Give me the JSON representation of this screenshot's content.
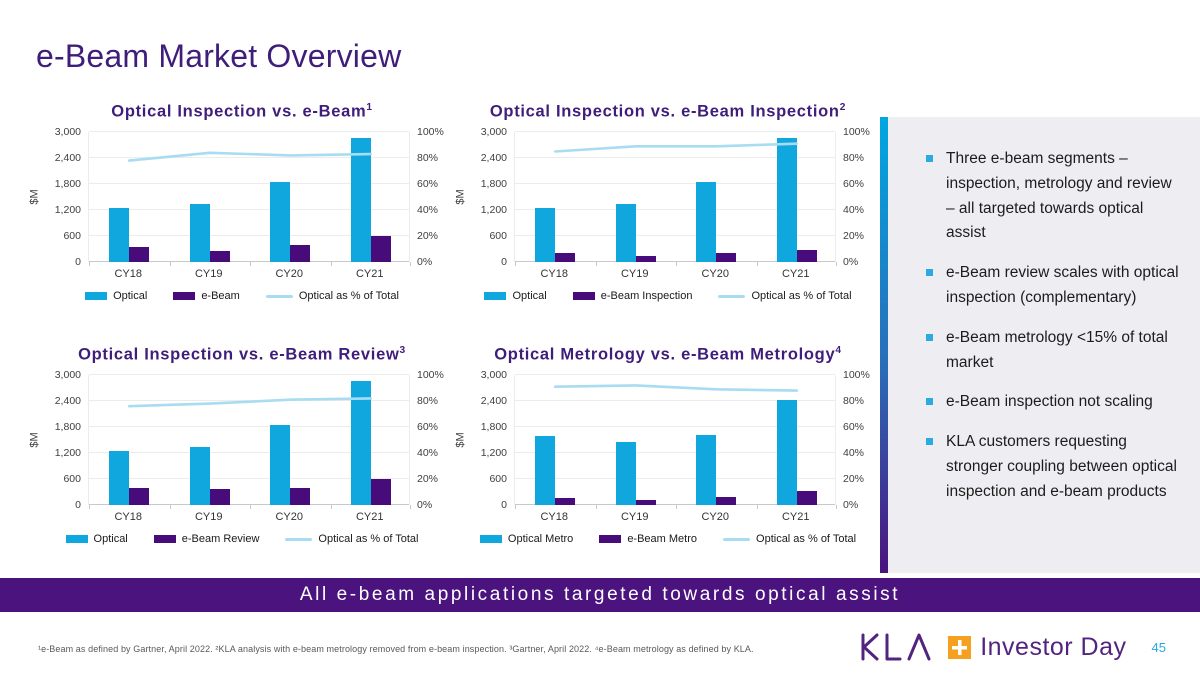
{
  "slide": {
    "title": "e-Beam Market Overview",
    "banner": "All e-beam applications targeted towards optical assist",
    "footnote": "¹e-Beam as defined by Gartner, April 2022. ²KLA analysis with e-beam metrology removed from e-beam inspection. ³Gartner, April 2022. ⁴e-Beam metrology as defined by KLA.",
    "page_number": "45",
    "logo": {
      "brand": "KLA",
      "event": "Investor Day",
      "plus_icon": "+"
    }
  },
  "sidebar": {
    "bullets": [
      "Three e-beam segments – inspection, metrology and review – all targeted towards optical assist",
      "e-Beam review scales with optical inspection (complementary)",
      "e-Beam metrology <15% of total market",
      "e-Beam inspection not scaling",
      "KLA customers requesting stronger coupling between optical inspection and e-beam products"
    ]
  },
  "colors": {
    "optical": "#0FA7DE",
    "ebeam": "#470B7A",
    "line": "#A8DCF2",
    "title_purple": "#3F1D7A",
    "banner_purple": "#4A137E",
    "accent_cyan": "#00A7E1",
    "bullet_cyan": "#29ABE2",
    "logo_purple": "#52247F",
    "logo_orange": "#F5A01E",
    "page_cyan": "#29A8DF",
    "gridline": "#ECECEC",
    "baseline": "#C9C9C9"
  },
  "chart_data": [
    {
      "type": "bar",
      "title": "Optical Inspection vs. e-Beam",
      "title_superscript": "1",
      "categories": [
        "CY18",
        "CY19",
        "CY20",
        "CY21"
      ],
      "series": [
        {
          "name": "Optical",
          "type": "bar",
          "color_key": "optical",
          "axis": "left",
          "values": [
            1250,
            1350,
            1850,
            2870
          ]
        },
        {
          "name": "e-Beam",
          "type": "bar",
          "color_key": "ebeam",
          "axis": "left",
          "values": [
            350,
            250,
            400,
            600
          ]
        },
        {
          "name": "Optical as % of Total",
          "type": "line",
          "color_key": "line",
          "axis": "right",
          "values": [
            78,
            84,
            82,
            83
          ]
        }
      ],
      "left_axis": {
        "label": "$M",
        "min": 0,
        "max": 3000,
        "ticks": [
          "0",
          "600",
          "1,200",
          "1,800",
          "2,400",
          "3,000"
        ]
      },
      "right_axis": {
        "min": 0,
        "max": 100,
        "ticks": [
          "0%",
          "20%",
          "40%",
          "60%",
          "80%",
          "100%"
        ]
      },
      "grid": true,
      "legend_position": "bottom"
    },
    {
      "type": "bar",
      "title": "Optical Inspection vs. e-Beam Inspection",
      "title_superscript": "2",
      "categories": [
        "CY18",
        "CY19",
        "CY20",
        "CY21"
      ],
      "series": [
        {
          "name": "Optical",
          "type": "bar",
          "color_key": "optical",
          "axis": "left",
          "values": [
            1250,
            1350,
            1850,
            2870
          ]
        },
        {
          "name": "e-Beam Inspection",
          "type": "bar",
          "color_key": "ebeam",
          "axis": "left",
          "values": [
            200,
            150,
            200,
            270
          ]
        },
        {
          "name": "Optical as % of Total",
          "type": "line",
          "color_key": "line",
          "axis": "right",
          "values": [
            85,
            89,
            89,
            91
          ]
        }
      ],
      "left_axis": {
        "label": "$M",
        "min": 0,
        "max": 3000,
        "ticks": [
          "0",
          "600",
          "1,200",
          "1,800",
          "2,400",
          "3,000"
        ]
      },
      "right_axis": {
        "min": 0,
        "max": 100,
        "ticks": [
          "0%",
          "20%",
          "40%",
          "60%",
          "80%",
          "100%"
        ]
      },
      "grid": true,
      "legend_position": "bottom"
    },
    {
      "type": "bar",
      "title": "Optical Inspection vs. e-Beam Review",
      "title_superscript": "3",
      "categories": [
        "CY18",
        "CY19",
        "CY20",
        "CY21"
      ],
      "series": [
        {
          "name": "Optical",
          "type": "bar",
          "color_key": "optical",
          "axis": "left",
          "values": [
            1250,
            1350,
            1850,
            2870
          ]
        },
        {
          "name": "e-Beam Review",
          "type": "bar",
          "color_key": "ebeam",
          "axis": "left",
          "values": [
            400,
            370,
            400,
            590
          ]
        },
        {
          "name": "Optical as % of Total",
          "type": "line",
          "color_key": "line",
          "axis": "right",
          "values": [
            76,
            78,
            81,
            82
          ]
        }
      ],
      "left_axis": {
        "label": "$M",
        "min": 0,
        "max": 3000,
        "ticks": [
          "0",
          "600",
          "1,200",
          "1,800",
          "2,400",
          "3,000"
        ]
      },
      "right_axis": {
        "min": 0,
        "max": 100,
        "ticks": [
          "0%",
          "20%",
          "40%",
          "60%",
          "80%",
          "100%"
        ]
      },
      "grid": true,
      "legend_position": "bottom"
    },
    {
      "type": "bar",
      "title": "Optical Metrology vs. e-Beam Metrology",
      "title_superscript": "4",
      "categories": [
        "CY18",
        "CY19",
        "CY20",
        "CY21"
      ],
      "series": [
        {
          "name": "Optical Metro",
          "type": "bar",
          "color_key": "optical",
          "axis": "left",
          "values": [
            1600,
            1450,
            1620,
            2430
          ]
        },
        {
          "name": "e-Beam Metro",
          "type": "bar",
          "color_key": "ebeam",
          "axis": "left",
          "values": [
            160,
            120,
            190,
            330
          ]
        },
        {
          "name": "Optical as % of Total",
          "type": "line",
          "color_key": "line",
          "axis": "right",
          "values": [
            91,
            92,
            89,
            88
          ]
        }
      ],
      "left_axis": {
        "label": "$M",
        "min": 0,
        "max": 3000,
        "ticks": [
          "0",
          "600",
          "1,200",
          "1,800",
          "2,400",
          "3,000"
        ]
      },
      "right_axis": {
        "min": 0,
        "max": 100,
        "ticks": [
          "0%",
          "20%",
          "40%",
          "60%",
          "80%",
          "100%"
        ]
      },
      "grid": true,
      "legend_position": "bottom"
    }
  ]
}
